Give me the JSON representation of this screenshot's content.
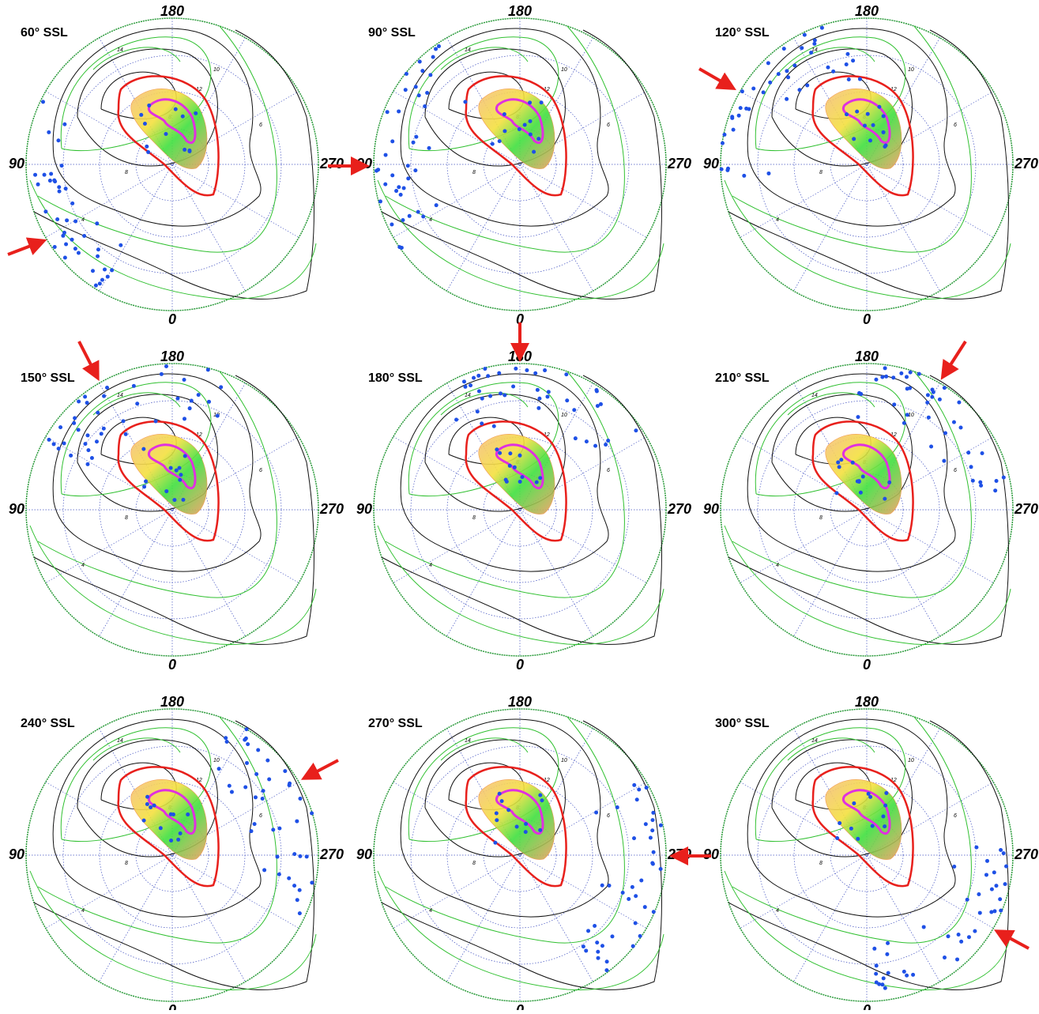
{
  "panels": [
    {
      "label": "60° SSL"
    },
    {
      "label": "90° SSL"
    },
    {
      "label": "120° SSL"
    },
    {
      "label": "150° SSL"
    },
    {
      "label": "180° SSL"
    },
    {
      "label": "210° SSL"
    },
    {
      "label": "240° SSL"
    },
    {
      "label": "270° SSL"
    },
    {
      "label": "300° SSL"
    }
  ],
  "axis_labels": {
    "top": "180",
    "left": "90",
    "right": "270",
    "bottom": "0"
  },
  "contour_labels": [
    "14",
    "12",
    "10",
    "8",
    "6",
    "4"
  ]
}
